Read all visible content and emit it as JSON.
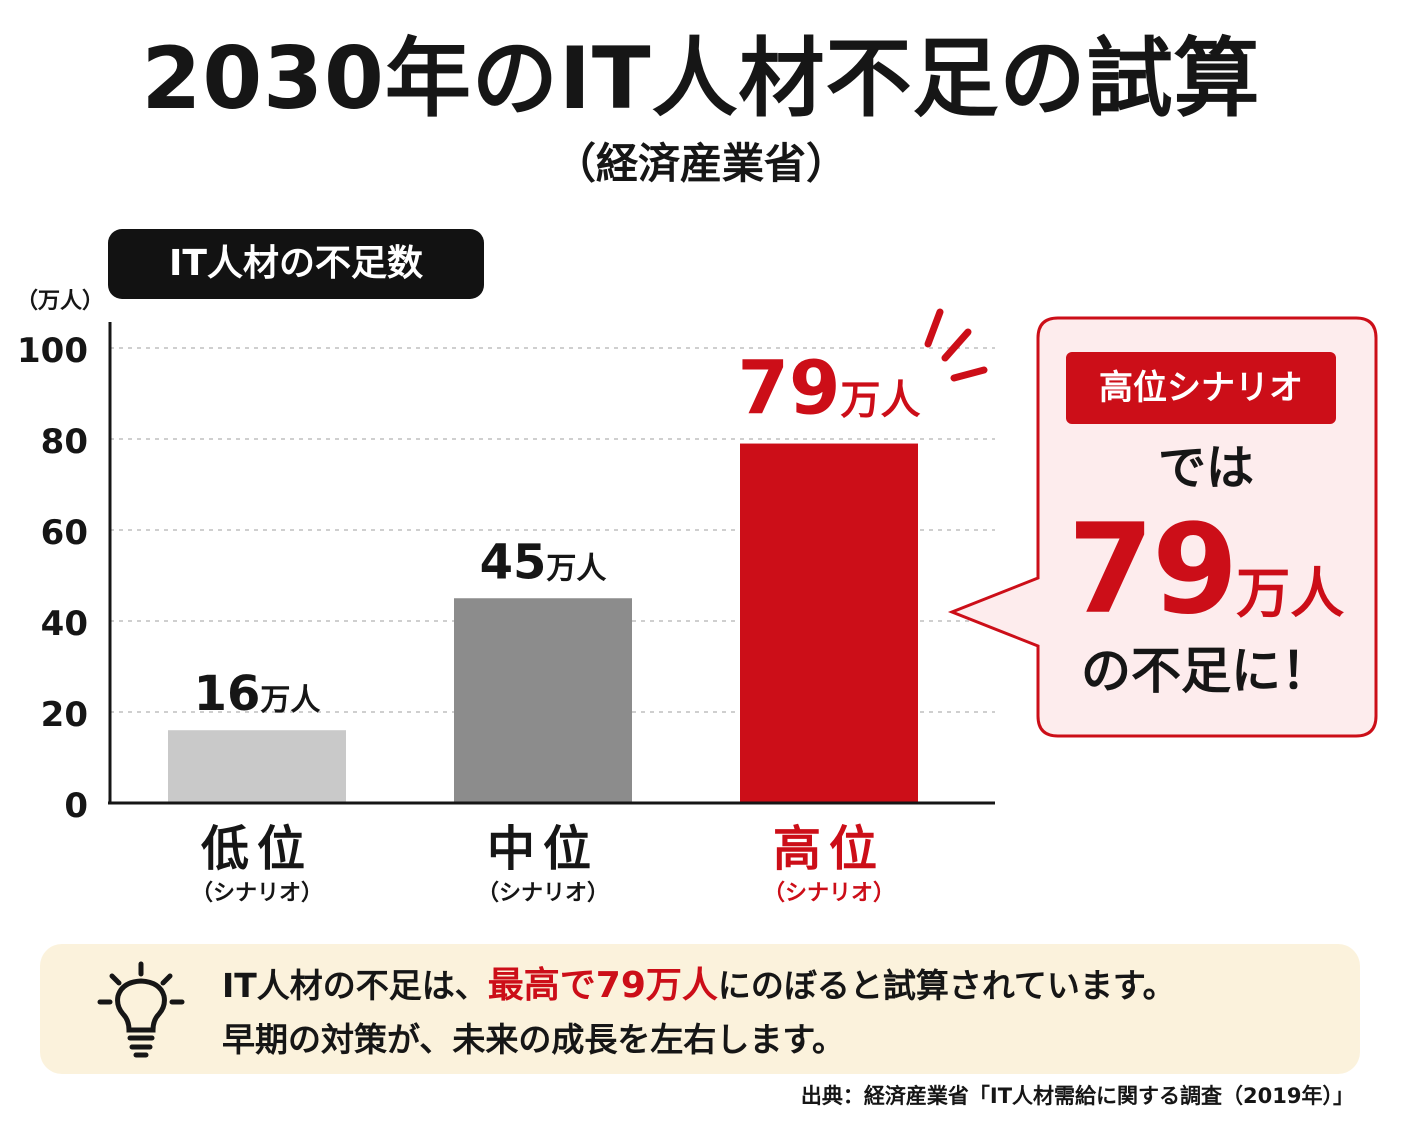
{
  "header": {
    "title": "2030年のIT人材不足の試算",
    "subtitle": "（経済産業省）"
  },
  "chart_data": {
    "type": "bar",
    "title": "IT人材の不足数",
    "ylabel": "（万人）",
    "ylim": [
      0,
      100
    ],
    "yticks": [
      0,
      20,
      40,
      60,
      80,
      100
    ],
    "grid": true,
    "categories": [
      "低位",
      "中位",
      "高位"
    ],
    "category_sublabels": [
      "（シナリオ）",
      "（シナリオ）",
      "（シナリオ）"
    ],
    "values": [
      16,
      45,
      79
    ],
    "value_labels": [
      {
        "num": "16",
        "unit": "万人"
      },
      {
        "num": "45",
        "unit": "万人"
      },
      {
        "num": "79",
        "unit": "万人"
      }
    ],
    "colors": [
      "#c9c9c9",
      "#8c8c8c",
      "#cc0e18"
    ]
  },
  "callout": {
    "badge": "高位シナリオ",
    "line1": "では",
    "value_num": "79",
    "value_unit": "万人",
    "line3": "の不足に！"
  },
  "note": {
    "icon": "lightbulb-icon",
    "line1_pre": "IT人材の不足は、",
    "line1_highlight": "最高で79万人",
    "line1_post": "にのぼると試算されています。",
    "line2": "早期の対策が、未来の成長を左右します。"
  },
  "source": "出典：経済産業省「IT人材需給に関する調査（2019年）」",
  "colors": {
    "accent": "#cc0e18",
    "callout_bg": "#fdeced",
    "note_bg": "#fbf2dc",
    "dark": "#161616"
  }
}
